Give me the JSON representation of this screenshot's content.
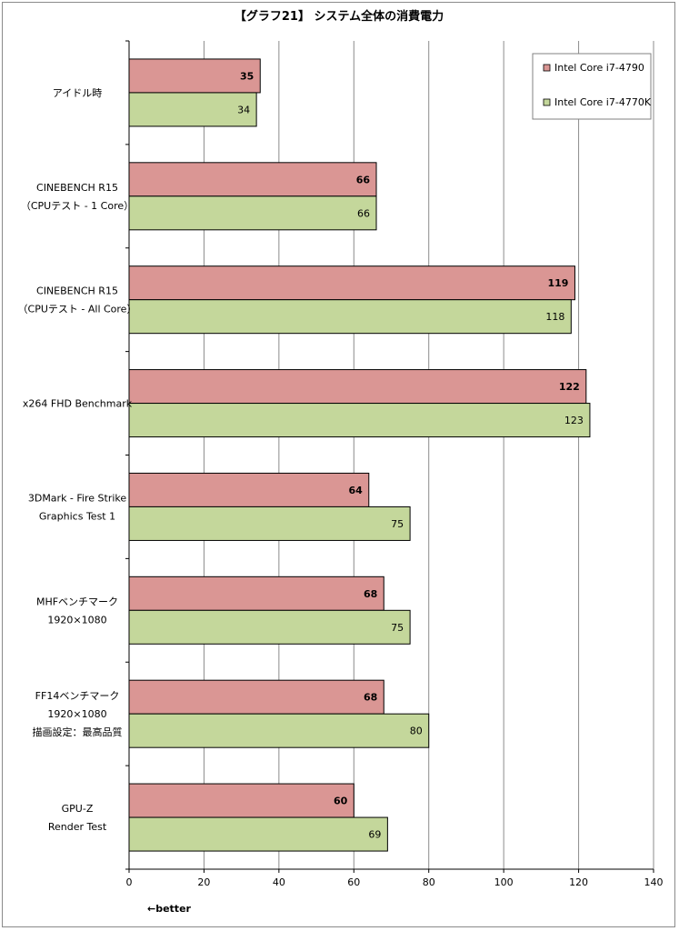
{
  "chart_data": {
    "type": "bar",
    "orientation": "horizontal",
    "title": "【グラフ21】 システム全体の消費電力",
    "categories": [
      [
        "アイドル時"
      ],
      [
        "CINEBENCH R15",
        "（CPUテスト - 1 Core）"
      ],
      [
        "CINEBENCH R15",
        "（CPUテスト - All Core）"
      ],
      [
        "x264 FHD Benchmark"
      ],
      [
        "3DMark - Fire Strike",
        "Graphics Test 1"
      ],
      [
        "MHFベンチマーク",
        "1920×1080"
      ],
      [
        "FF14ベンチマーク",
        "1920×1080",
        "描画設定：最高品質"
      ],
      [
        "GPU-Z",
        "Render Test"
      ]
    ],
    "series": [
      {
        "name": "Intel Core i7-4790",
        "color": "#da9694",
        "values": [
          35,
          66,
          119,
          122,
          64,
          68,
          68,
          60
        ]
      },
      {
        "name": "Intel Core i7-4770K",
        "color": "#c4d79b",
        "values": [
          34,
          66,
          118,
          123,
          75,
          75,
          80,
          69
        ]
      }
    ],
    "xlim": [
      0,
      140
    ],
    "xticks": [
      0,
      20,
      40,
      60,
      80,
      100,
      120,
      140
    ],
    "grid": true,
    "legend_position": "top-right",
    "annotation": "←better"
  }
}
